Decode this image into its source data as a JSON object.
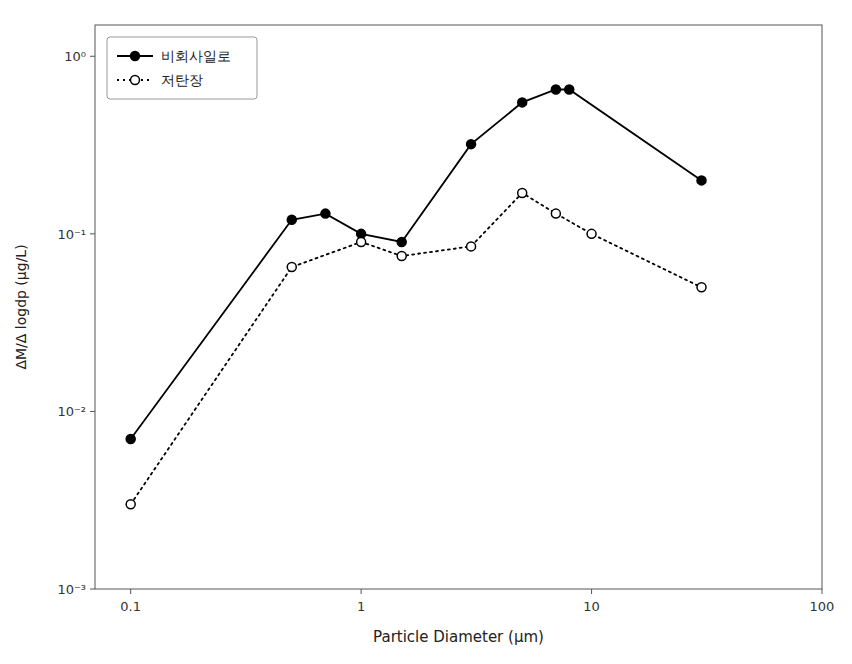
{
  "chart_data": {
    "type": "line",
    "xlabel": "Particle Diameter (μm)",
    "ylabel": "ΔM/Δ logdp (μg/L)",
    "log": true,
    "grid": false,
    "legend": "upper-left",
    "xlim": [
      0.07,
      100
    ],
    "ylim": [
      0.001,
      1.5
    ],
    "xticks": [
      0.1,
      1,
      10,
      100
    ],
    "yticks": [
      {
        "value": 0.001,
        "label": "10⁻³"
      },
      {
        "value": 0.01,
        "label": "10⁻²"
      },
      {
        "value": 0.1,
        "label": "10⁻¹"
      },
      {
        "value": 1,
        "label": "10⁰"
      }
    ],
    "series": [
      {
        "name": "비회사일로",
        "color": "#000000",
        "line_style": "solid",
        "marker": "circle",
        "x": [
          0.1,
          0.5,
          0.7,
          1.0,
          1.5,
          3.0,
          5.0,
          7.0,
          8.0,
          30.0
        ],
        "values": [
          0.007,
          0.12,
          0.13,
          0.1,
          0.09,
          0.32,
          0.55,
          0.65,
          0.65,
          0.2
        ]
      },
      {
        "name": "저탄장",
        "color": "#000000",
        "line_style": "dotted",
        "marker": "circle-open",
        "x": [
          0.1,
          0.5,
          1.0,
          1.5,
          3.0,
          5.0,
          7.0,
          10.0,
          30.0
        ],
        "values": [
          0.003,
          0.065,
          0.09,
          0.075,
          0.085,
          0.17,
          0.13,
          0.1,
          0.05
        ]
      }
    ]
  }
}
